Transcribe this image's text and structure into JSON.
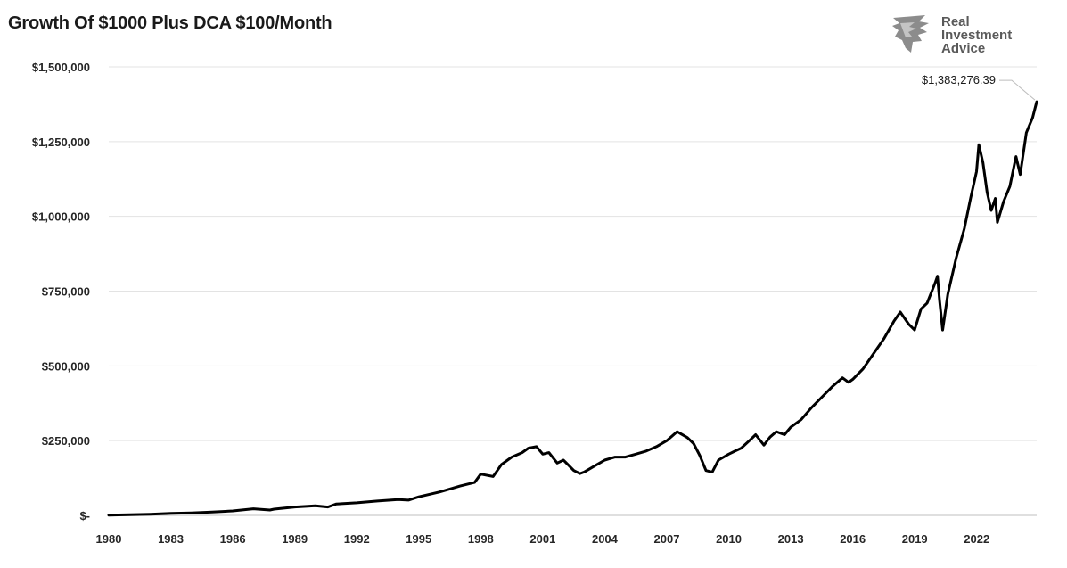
{
  "page": {
    "background": "#ffffff"
  },
  "logo": {
    "line1": "Real",
    "line2": "Investment",
    "line3": "Advice",
    "text_color": "#5a5a5a",
    "icon": "lion-head-icon"
  },
  "chart_data": {
    "type": "line",
    "title": "Growth Of $1000 Plus DCA $100/Month",
    "xlabel": "",
    "ylabel": "",
    "xlim": [
      1980,
      2024.9
    ],
    "ylim": [
      0,
      1500000
    ],
    "grid": true,
    "legend": "none",
    "line_color": "#000000",
    "x_ticks": [
      1980,
      1983,
      1986,
      1989,
      1992,
      1995,
      1998,
      2001,
      2004,
      2007,
      2010,
      2013,
      2016,
      2019,
      2022
    ],
    "x_tick_labels": [
      "1980",
      "1983",
      "1986",
      "1989",
      "1992",
      "1995",
      "1998",
      "2001",
      "2004",
      "2007",
      "2010",
      "2013",
      "2016",
      "2019",
      "2022"
    ],
    "y_ticks": [
      0,
      250000,
      500000,
      750000,
      1000000,
      1250000,
      1500000
    ],
    "y_tick_labels": [
      "$-",
      "$250,000",
      "$500,000",
      "$750,000",
      "$1,000,000",
      "$1,250,000",
      "$1,500,000"
    ],
    "annotation": {
      "x": 2024.9,
      "y": 1383276.39,
      "label": "$1,383,276.39"
    },
    "series": [
      {
        "x": [
          1980,
          1981,
          1982,
          1983,
          1984,
          1985,
          1986,
          1987,
          1987.8,
          1988,
          1989,
          1990,
          1990.6,
          1991,
          1992,
          1993,
          1994,
          1994.5,
          1995,
          1996,
          1997,
          1997.7,
          1998,
          1998.6,
          1998.8,
          1999,
          1999.5,
          2000,
          2000.3,
          2000.7,
          2001,
          2001.3,
          2001.7,
          2002,
          2002.5,
          2002.8,
          2003,
          2003.5,
          2004,
          2004.5,
          2005,
          2005.5,
          2006,
          2006.5,
          2007,
          2007.5,
          2007.8,
          2008,
          2008.3,
          2008.6,
          2008.9,
          2009.2,
          2009.5,
          2010,
          2010.3,
          2010.6,
          2011,
          2011.3,
          2011.7,
          2012,
          2012.3,
          2012.7,
          2013,
          2013.5,
          2014,
          2014.5,
          2015,
          2015.5,
          2015.8,
          2016,
          2016.5,
          2017,
          2017.5,
          2018,
          2018.3,
          2018.7,
          2018.99,
          2019.3,
          2019.6,
          2020,
          2020.1,
          2020.2,
          2020.35,
          2020.6,
          2021,
          2021.4,
          2021.7,
          2021.99,
          2022.1,
          2022.3,
          2022.5,
          2022.7,
          2022.9,
          2023,
          2023.3,
          2023.6,
          2023.9,
          2024.1,
          2024.4,
          2024.7,
          2024.9
        ],
        "y": [
          1000,
          2500,
          4000,
          6500,
          8000,
          11000,
          15000,
          22000,
          18000,
          21000,
          28000,
          32000,
          28000,
          38000,
          42000,
          48000,
          53000,
          51000,
          62000,
          78000,
          98000,
          110000,
          138000,
          130000,
          150000,
          170000,
          195000,
          210000,
          225000,
          230000,
          205000,
          210000,
          175000,
          185000,
          150000,
          140000,
          145000,
          165000,
          185000,
          195000,
          195000,
          205000,
          215000,
          230000,
          250000,
          280000,
          268000,
          260000,
          240000,
          200000,
          150000,
          145000,
          185000,
          205000,
          215000,
          225000,
          250000,
          270000,
          235000,
          262000,
          280000,
          270000,
          295000,
          320000,
          360000,
          395000,
          430000,
          460000,
          445000,
          455000,
          490000,
          540000,
          590000,
          650000,
          680000,
          640000,
          620000,
          690000,
          710000,
          780000,
          800000,
          720000,
          620000,
          740000,
          860000,
          960000,
          1060000,
          1150000,
          1240000,
          1180000,
          1080000,
          1020000,
          1060000,
          980000,
          1050000,
          1100000,
          1200000,
          1140000,
          1280000,
          1330000,
          1383276.39
        ]
      }
    ]
  }
}
